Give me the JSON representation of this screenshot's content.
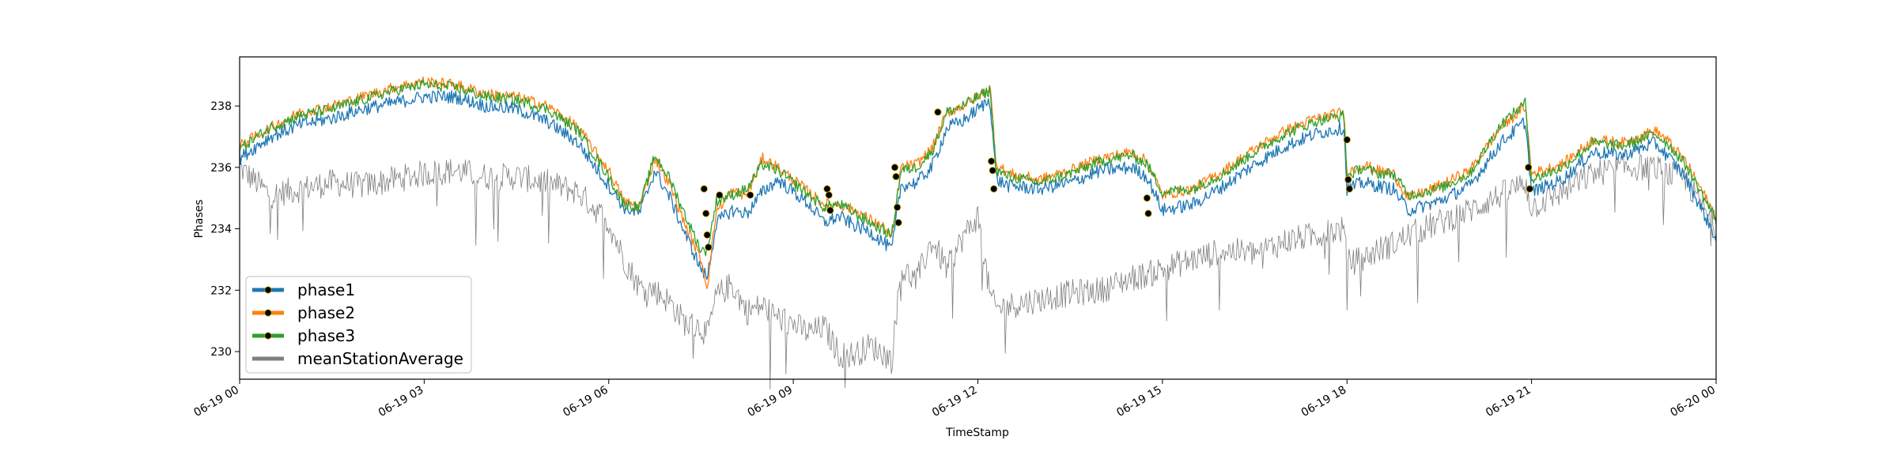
{
  "chart_data": {
    "type": "line",
    "xlabel": "TimeStamp",
    "ylabel": "Phases",
    "x_domain": [
      "06-19 00:00",
      "06-20 00:00"
    ],
    "ylim": [
      229.1,
      239.6
    ],
    "x_ticks": [
      "06-19 00",
      "06-19 03",
      "06-19 06",
      "06-19 09",
      "06-19 12",
      "06-19 15",
      "06-19 18",
      "06-19 21",
      "06-20 00"
    ],
    "y_ticks": [
      "230",
      "232",
      "234",
      "236",
      "238"
    ],
    "grid": false,
    "legend_position": "lower-left",
    "x_hours": [
      0,
      0.5,
      1,
      1.5,
      2,
      2.5,
      3,
      3.5,
      4,
      4.5,
      5,
      5.5,
      6,
      6.25,
      6.5,
      6.75,
      7,
      7.25,
      7.5,
      7.6,
      7.75,
      8,
      8.25,
      8.5,
      8.75,
      9,
      9.25,
      9.5,
      9.75,
      10,
      10.25,
      10.5,
      10.6,
      10.75,
      11,
      11.25,
      11.5,
      11.75,
      12,
      12.2,
      12.3,
      12.5,
      13,
      13.5,
      14,
      14.5,
      14.75,
      15,
      15.5,
      16,
      16.5,
      17,
      17.5,
      17.95,
      18,
      18.25,
      18.5,
      18.75,
      19,
      19.5,
      20,
      20.5,
      20.9,
      21,
      21.5,
      22,
      22.5,
      23,
      23.2,
      23.5,
      24
    ],
    "series": [
      {
        "name": "phase1",
        "color": "#1f77b4",
        "values": [
          236.3,
          237.0,
          237.4,
          237.6,
          237.9,
          238.1,
          238.3,
          238.3,
          238.0,
          237.9,
          237.5,
          236.8,
          235.4,
          234.7,
          234.5,
          235.9,
          235.0,
          233.8,
          232.7,
          232.4,
          234.2,
          234.6,
          234.5,
          235.2,
          235.6,
          235.2,
          234.8,
          234.2,
          234.4,
          234.1,
          233.9,
          233.5,
          233.3,
          235.4,
          235.5,
          236.0,
          237.3,
          237.5,
          237.9,
          238.2,
          235.6,
          235.4,
          235.3,
          235.5,
          235.9,
          236.0,
          235.7,
          234.6,
          234.8,
          235.4,
          236.1,
          236.7,
          237.1,
          237.3,
          235.3,
          235.5,
          235.4,
          235.3,
          234.6,
          234.9,
          235.4,
          236.8,
          237.5,
          235.2,
          235.6,
          236.5,
          236.4,
          236.8,
          236.4,
          235.7,
          233.7
        ]
      },
      {
        "name": "phase2",
        "color": "#ff7f0e",
        "values": [
          236.7,
          237.3,
          237.8,
          238.0,
          238.3,
          238.6,
          238.8,
          238.7,
          238.4,
          238.3,
          238.0,
          237.3,
          235.9,
          234.9,
          234.7,
          236.3,
          235.4,
          234.1,
          233.0,
          232.1,
          234.6,
          235.2,
          235.1,
          236.3,
          236.0,
          235.6,
          235.2,
          234.8,
          234.8,
          234.6,
          234.3,
          234.0,
          233.6,
          236.0,
          236.1,
          236.6,
          237.8,
          238.0,
          238.3,
          238.6,
          236.1,
          235.8,
          235.6,
          235.9,
          236.3,
          236.5,
          236.2,
          235.1,
          235.3,
          235.9,
          236.6,
          237.2,
          237.6,
          237.8,
          235.8,
          236.1,
          235.9,
          235.8,
          235.0,
          235.4,
          235.9,
          237.3,
          238.0,
          235.8,
          236.1,
          236.9,
          236.8,
          237.2,
          236.9,
          236.2,
          234.4
        ]
      },
      {
        "name": "phase3",
        "color": "#2ca02c",
        "values": [
          236.6,
          237.3,
          237.7,
          237.9,
          238.2,
          238.5,
          238.7,
          238.6,
          238.3,
          238.2,
          237.9,
          237.2,
          235.7,
          234.8,
          234.7,
          236.4,
          235.6,
          234.4,
          233.3,
          233.3,
          234.9,
          235.1,
          235.3,
          236.1,
          235.9,
          235.5,
          235.1,
          234.7,
          234.8,
          234.5,
          234.2,
          233.9,
          233.8,
          235.9,
          236.0,
          236.5,
          237.8,
          238.0,
          238.3,
          238.5,
          235.9,
          235.7,
          235.5,
          235.8,
          236.2,
          236.4,
          236.1,
          235.2,
          235.3,
          235.8,
          236.5,
          237.1,
          237.5,
          237.7,
          235.7,
          236.0,
          235.8,
          235.8,
          235.1,
          235.3,
          235.8,
          237.4,
          238.1,
          235.6,
          236.0,
          236.8,
          236.7,
          237.1,
          236.8,
          236.1,
          234.3
        ]
      },
      {
        "name": "meanStationAverage",
        "color": "#7f7f7f",
        "values": [
          236.0,
          235.1,
          235.3,
          235.5,
          235.4,
          235.6,
          235.8,
          235.9,
          235.7,
          235.7,
          235.5,
          235.2,
          234.2,
          233.0,
          232.1,
          232.0,
          231.6,
          230.9,
          230.8,
          230.5,
          231.8,
          232.2,
          231.3,
          231.5,
          231.1,
          230.9,
          230.6,
          230.8,
          229.9,
          229.9,
          230.2,
          229.9,
          229.7,
          232.7,
          232.3,
          233.6,
          232.7,
          233.7,
          234.4,
          231.8,
          231.4,
          231.5,
          231.7,
          231.9,
          232.0,
          232.4,
          232.5,
          232.7,
          233.0,
          233.3,
          233.2,
          233.6,
          233.8,
          234.0,
          232.9,
          233.0,
          233.3,
          233.5,
          233.8,
          234.2,
          234.6,
          235.1,
          235.5,
          234.7,
          235.2,
          235.8,
          236.0,
          236.0,
          235.8,
          235.6,
          234.0
        ]
      }
    ],
    "event_markers": [
      {
        "hour": 7.55,
        "value": 235.3
      },
      {
        "hour": 7.58,
        "value": 234.5
      },
      {
        "hour": 7.6,
        "value": 233.8
      },
      {
        "hour": 7.62,
        "value": 233.4
      },
      {
        "hour": 7.8,
        "value": 235.1
      },
      {
        "hour": 8.3,
        "value": 235.1
      },
      {
        "hour": 9.55,
        "value": 235.3
      },
      {
        "hour": 9.58,
        "value": 235.1
      },
      {
        "hour": 9.6,
        "value": 234.6
      },
      {
        "hour": 10.65,
        "value": 236.0
      },
      {
        "hour": 10.67,
        "value": 235.7
      },
      {
        "hour": 10.69,
        "value": 234.7
      },
      {
        "hour": 10.71,
        "value": 234.2
      },
      {
        "hour": 11.35,
        "value": 237.8
      },
      {
        "hour": 12.22,
        "value": 236.2
      },
      {
        "hour": 12.24,
        "value": 235.9
      },
      {
        "hour": 12.26,
        "value": 235.3
      },
      {
        "hour": 14.75,
        "value": 235.0
      },
      {
        "hour": 14.77,
        "value": 234.5
      },
      {
        "hour": 18.0,
        "value": 236.9
      },
      {
        "hour": 18.02,
        "value": 235.6
      },
      {
        "hour": 18.04,
        "value": 235.3
      },
      {
        "hour": 20.95,
        "value": 236.0
      },
      {
        "hour": 20.97,
        "value": 235.3
      }
    ]
  }
}
